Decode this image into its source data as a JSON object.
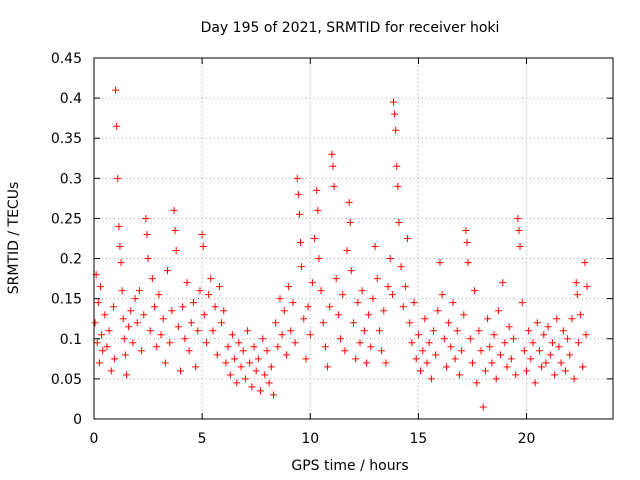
{
  "chart_data": {
    "type": "scatter",
    "title": "Day 195 of 2021, SRMTID for receiver hoki",
    "xlabel": "GPS time / hours",
    "ylabel": "SRMTID / TECUs",
    "xlim": [
      0,
      24
    ],
    "ylim": [
      0,
      0.45
    ],
    "xticks": [
      0,
      5,
      10,
      15,
      20
    ],
    "yticks": [
      0,
      0.05,
      0.1,
      0.15,
      0.2,
      0.25,
      0.3,
      0.35,
      0.4,
      0.45
    ],
    "grid": true,
    "marker": "+",
    "colors": {
      "points": "#ff0000",
      "grid": "#a0a0a0",
      "axes": "#000000"
    },
    "series": [
      {
        "name": "SRMTID",
        "points": [
          [
            0.05,
            0.12
          ],
          [
            0.1,
            0.18
          ],
          [
            0.15,
            0.095
          ],
          [
            0.2,
            0.145
          ],
          [
            0.25,
            0.07
          ],
          [
            0.3,
            0.165
          ],
          [
            0.35,
            0.105
          ],
          [
            0.4,
            0.085
          ],
          [
            0.5,
            0.13
          ],
          [
            0.6,
            0.09
          ],
          [
            0.7,
            0.11
          ],
          [
            0.8,
            0.06
          ],
          [
            0.9,
            0.14
          ],
          [
            0.95,
            0.075
          ],
          [
            1.0,
            0.41
          ],
          [
            1.05,
            0.365
          ],
          [
            1.1,
            0.3
          ],
          [
            1.15,
            0.24
          ],
          [
            1.2,
            0.215
          ],
          [
            1.25,
            0.195
          ],
          [
            1.3,
            0.16
          ],
          [
            1.35,
            0.125
          ],
          [
            1.4,
            0.1
          ],
          [
            1.45,
            0.08
          ],
          [
            1.5,
            0.055
          ],
          [
            1.6,
            0.115
          ],
          [
            1.7,
            0.135
          ],
          [
            1.8,
            0.095
          ],
          [
            1.9,
            0.15
          ],
          [
            2.0,
            0.12
          ],
          [
            2.1,
            0.16
          ],
          [
            2.2,
            0.085
          ],
          [
            2.3,
            0.13
          ],
          [
            2.4,
            0.25
          ],
          [
            2.45,
            0.23
          ],
          [
            2.5,
            0.2
          ],
          [
            2.6,
            0.11
          ],
          [
            2.7,
            0.175
          ],
          [
            2.8,
            0.14
          ],
          [
            2.9,
            0.09
          ],
          [
            3.0,
            0.155
          ],
          [
            3.1,
            0.105
          ],
          [
            3.2,
            0.125
          ],
          [
            3.3,
            0.07
          ],
          [
            3.4,
            0.185
          ],
          [
            3.5,
            0.095
          ],
          [
            3.6,
            0.135
          ],
          [
            3.7,
            0.26
          ],
          [
            3.75,
            0.235
          ],
          [
            3.8,
            0.21
          ],
          [
            3.9,
            0.115
          ],
          [
            4.0,
            0.06
          ],
          [
            4.1,
            0.14
          ],
          [
            4.2,
            0.1
          ],
          [
            4.3,
            0.17
          ],
          [
            4.4,
            0.085
          ],
          [
            4.5,
            0.12
          ],
          [
            4.6,
            0.145
          ],
          [
            4.7,
            0.065
          ],
          [
            4.8,
            0.11
          ],
          [
            4.9,
            0.16
          ],
          [
            5.0,
            0.23
          ],
          [
            5.05,
            0.215
          ],
          [
            5.1,
            0.13
          ],
          [
            5.2,
            0.095
          ],
          [
            5.3,
            0.155
          ],
          [
            5.4,
            0.175
          ],
          [
            5.5,
            0.11
          ],
          [
            5.6,
            0.14
          ],
          [
            5.7,
            0.08
          ],
          [
            5.8,
            0.165
          ],
          [
            5.9,
            0.12
          ],
          [
            6.0,
            0.135
          ],
          [
            6.1,
            0.07
          ],
          [
            6.2,
            0.09
          ],
          [
            6.3,
            0.055
          ],
          [
            6.4,
            0.105
          ],
          [
            6.5,
            0.075
          ],
          [
            6.6,
            0.045
          ],
          [
            6.7,
            0.095
          ],
          [
            6.8,
            0.065
          ],
          [
            6.9,
            0.085
          ],
          [
            7.0,
            0.05
          ],
          [
            7.1,
            0.11
          ],
          [
            7.2,
            0.07
          ],
          [
            7.3,
            0.04
          ],
          [
            7.4,
            0.09
          ],
          [
            7.5,
            0.06
          ],
          [
            7.6,
            0.075
          ],
          [
            7.7,
            0.035
          ],
          [
            7.8,
            0.1
          ],
          [
            7.9,
            0.055
          ],
          [
            8.0,
            0.085
          ],
          [
            8.1,
            0.045
          ],
          [
            8.2,
            0.065
          ],
          [
            8.3,
            0.03
          ],
          [
            8.4,
            0.12
          ],
          [
            8.5,
            0.09
          ],
          [
            8.6,
            0.15
          ],
          [
            8.7,
            0.105
          ],
          [
            8.8,
            0.135
          ],
          [
            8.9,
            0.08
          ],
          [
            9.0,
            0.165
          ],
          [
            9.1,
            0.11
          ],
          [
            9.2,
            0.145
          ],
          [
            9.3,
            0.095
          ],
          [
            9.4,
            0.3
          ],
          [
            9.45,
            0.28
          ],
          [
            9.5,
            0.255
          ],
          [
            9.55,
            0.22
          ],
          [
            9.6,
            0.19
          ],
          [
            9.7,
            0.125
          ],
          [
            9.8,
            0.075
          ],
          [
            9.9,
            0.14
          ],
          [
            10.0,
            0.105
          ],
          [
            10.1,
            0.17
          ],
          [
            10.2,
            0.225
          ],
          [
            10.3,
            0.285
          ],
          [
            10.35,
            0.26
          ],
          [
            10.4,
            0.2
          ],
          [
            10.5,
            0.16
          ],
          [
            10.6,
            0.12
          ],
          [
            10.7,
            0.09
          ],
          [
            10.8,
            0.065
          ],
          [
            10.9,
            0.14
          ],
          [
            11.0,
            0.33
          ],
          [
            11.05,
            0.315
          ],
          [
            11.1,
            0.29
          ],
          [
            11.2,
            0.175
          ],
          [
            11.3,
            0.13
          ],
          [
            11.4,
            0.1
          ],
          [
            11.5,
            0.155
          ],
          [
            11.6,
            0.085
          ],
          [
            11.7,
            0.21
          ],
          [
            11.8,
            0.27
          ],
          [
            11.85,
            0.245
          ],
          [
            11.9,
            0.185
          ],
          [
            12.0,
            0.12
          ],
          [
            12.1,
            0.075
          ],
          [
            12.2,
            0.145
          ],
          [
            12.3,
            0.095
          ],
          [
            12.4,
            0.16
          ],
          [
            12.5,
            0.11
          ],
          [
            12.6,
            0.07
          ],
          [
            12.7,
            0.13
          ],
          [
            12.8,
            0.09
          ],
          [
            12.9,
            0.15
          ],
          [
            13.0,
            0.215
          ],
          [
            13.1,
            0.175
          ],
          [
            13.2,
            0.11
          ],
          [
            13.3,
            0.085
          ],
          [
            13.4,
            0.135
          ],
          [
            13.5,
            0.07
          ],
          [
            13.6,
            0.165
          ],
          [
            13.7,
            0.2
          ],
          [
            13.8,
            0.155
          ],
          [
            13.85,
            0.395
          ],
          [
            13.9,
            0.38
          ],
          [
            13.95,
            0.36
          ],
          [
            14.0,
            0.315
          ],
          [
            14.05,
            0.29
          ],
          [
            14.1,
            0.245
          ],
          [
            14.2,
            0.19
          ],
          [
            14.3,
            0.14
          ],
          [
            14.4,
            0.165
          ],
          [
            14.5,
            0.225
          ],
          [
            14.6,
            0.12
          ],
          [
            14.7,
            0.095
          ],
          [
            14.8,
            0.145
          ],
          [
            14.9,
            0.075
          ],
          [
            15.0,
            0.105
          ],
          [
            15.1,
            0.06
          ],
          [
            15.2,
            0.085
          ],
          [
            15.3,
            0.125
          ],
          [
            15.4,
            0.07
          ],
          [
            15.5,
            0.095
          ],
          [
            15.6,
            0.05
          ],
          [
            15.7,
            0.11
          ],
          [
            15.8,
            0.08
          ],
          [
            15.9,
            0.135
          ],
          [
            16.0,
            0.195
          ],
          [
            16.1,
            0.155
          ],
          [
            16.2,
            0.1
          ],
          [
            16.3,
            0.065
          ],
          [
            16.4,
            0.12
          ],
          [
            16.5,
            0.09
          ],
          [
            16.6,
            0.145
          ],
          [
            16.7,
            0.075
          ],
          [
            16.8,
            0.11
          ],
          [
            16.9,
            0.055
          ],
          [
            17.0,
            0.085
          ],
          [
            17.1,
            0.13
          ],
          [
            17.2,
            0.235
          ],
          [
            17.25,
            0.22
          ],
          [
            17.3,
            0.195
          ],
          [
            17.4,
            0.1
          ],
          [
            17.5,
            0.07
          ],
          [
            17.6,
            0.16
          ],
          [
            17.7,
            0.045
          ],
          [
            17.8,
            0.11
          ],
          [
            17.9,
            0.085
          ],
          [
            18.0,
            0.015
          ],
          [
            18.1,
            0.06
          ],
          [
            18.2,
            0.125
          ],
          [
            18.3,
            0.09
          ],
          [
            18.4,
            0.07
          ],
          [
            18.5,
            0.105
          ],
          [
            18.6,
            0.05
          ],
          [
            18.7,
            0.135
          ],
          [
            18.8,
            0.08
          ],
          [
            18.9,
            0.17
          ],
          [
            19.0,
            0.095
          ],
          [
            19.1,
            0.065
          ],
          [
            19.2,
            0.115
          ],
          [
            19.3,
            0.075
          ],
          [
            19.4,
            0.1
          ],
          [
            19.5,
            0.055
          ],
          [
            19.6,
            0.25
          ],
          [
            19.65,
            0.235
          ],
          [
            19.7,
            0.215
          ],
          [
            19.8,
            0.145
          ],
          [
            19.9,
            0.085
          ],
          [
            20.0,
            0.06
          ],
          [
            20.1,
            0.11
          ],
          [
            20.2,
            0.075
          ],
          [
            20.3,
            0.095
          ],
          [
            20.4,
            0.045
          ],
          [
            20.5,
            0.12
          ],
          [
            20.6,
            0.085
          ],
          [
            20.7,
            0.065
          ],
          [
            20.8,
            0.105
          ],
          [
            20.9,
            0.07
          ],
          [
            21.0,
            0.115
          ],
          [
            21.1,
            0.08
          ],
          [
            21.2,
            0.095
          ],
          [
            21.3,
            0.055
          ],
          [
            21.4,
            0.125
          ],
          [
            21.5,
            0.09
          ],
          [
            21.6,
            0.07
          ],
          [
            21.7,
            0.11
          ],
          [
            21.8,
            0.06
          ],
          [
            21.9,
            0.1
          ],
          [
            22.0,
            0.08
          ],
          [
            22.1,
            0.125
          ],
          [
            22.2,
            0.05
          ],
          [
            22.3,
            0.17
          ],
          [
            22.35,
            0.155
          ],
          [
            22.4,
            0.095
          ],
          [
            22.5,
            0.13
          ],
          [
            22.6,
            0.065
          ],
          [
            22.7,
            0.195
          ],
          [
            22.75,
            0.105
          ],
          [
            22.8,
            0.165
          ]
        ]
      }
    ]
  }
}
